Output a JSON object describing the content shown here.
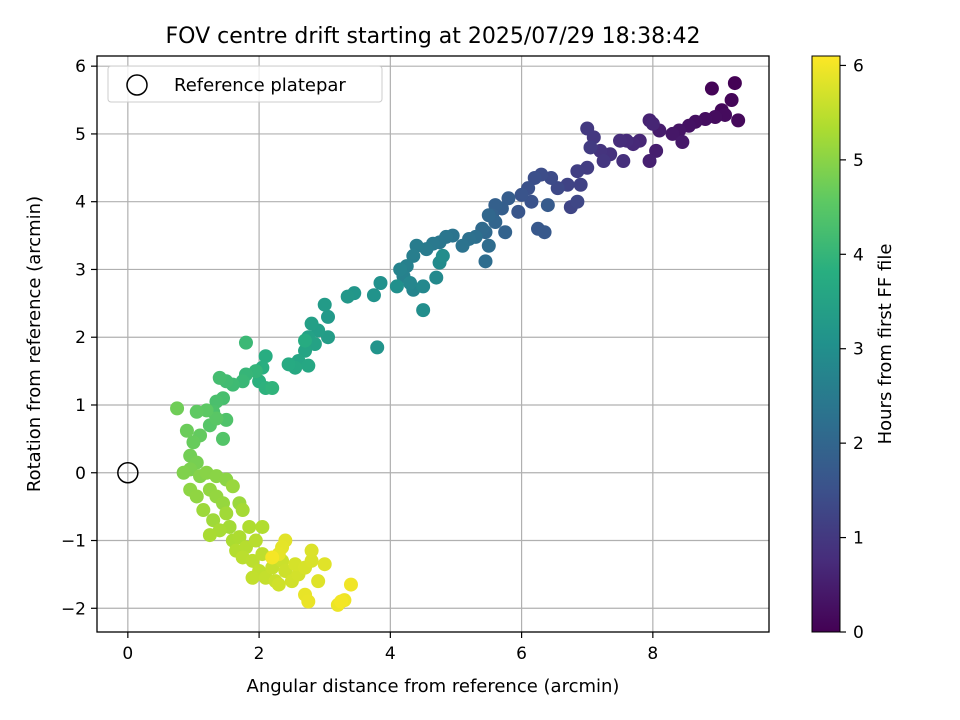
{
  "chart_data": {
    "type": "scatter",
    "title": "FOV centre drift starting at 2025/07/29 18:38:42",
    "xlabel": "Angular distance from reference (arcmin)",
    "ylabel": "Rotation from reference (arcmin)",
    "xlim": [
      -0.47,
      9.77
    ],
    "ylim": [
      -2.35,
      6.15
    ],
    "x_ticks": [
      "0",
      "2",
      "4",
      "6",
      "8"
    ],
    "y_ticks": [
      "−2",
      "−1",
      "0",
      "1",
      "2",
      "3",
      "4",
      "5",
      "6"
    ],
    "grid": true,
    "legend": {
      "placement": "top-left",
      "label": "Reference platepar"
    },
    "reference": {
      "x": 0,
      "y": 0
    },
    "colorbar": {
      "label": "Hours from first FF file",
      "range": [
        0,
        6.1
      ],
      "ticks": [
        "0",
        "1",
        "2",
        "3",
        "4",
        "5",
        "6"
      ],
      "colormap": "viridis"
    },
    "points": [
      [
        9.25,
        5.75,
        0.02
      ],
      [
        8.9,
        5.67,
        0.05
      ],
      [
        9.2,
        5.5,
        0.08
      ],
      [
        9.05,
        5.35,
        0.11
      ],
      [
        9.3,
        5.2,
        0.14
      ],
      [
        9.1,
        5.28,
        0.17
      ],
      [
        8.95,
        5.25,
        0.2
      ],
      [
        8.8,
        5.22,
        0.23
      ],
      [
        8.65,
        5.18,
        0.26
      ],
      [
        8.55,
        5.12,
        0.3
      ],
      [
        8.4,
        5.05,
        0.34
      ],
      [
        8.3,
        5.0,
        0.38
      ],
      [
        8.45,
        4.88,
        0.42
      ],
      [
        8.1,
        5.05,
        0.46
      ],
      [
        8.05,
        4.75,
        0.5
      ],
      [
        7.95,
        4.6,
        0.54
      ],
      [
        7.95,
        5.2,
        0.58
      ],
      [
        8.0,
        5.15,
        0.62
      ],
      [
        7.8,
        4.9,
        0.66
      ],
      [
        7.7,
        4.85,
        0.7
      ],
      [
        7.6,
        4.9,
        0.74
      ],
      [
        7.5,
        4.9,
        0.78
      ],
      [
        7.55,
        4.6,
        0.82
      ],
      [
        7.35,
        4.7,
        0.86
      ],
      [
        7.2,
        4.75,
        0.9
      ],
      [
        7.25,
        4.6,
        0.94
      ],
      [
        7.1,
        4.95,
        0.98
      ],
      [
        7.0,
        5.08,
        1.02
      ],
      [
        7.05,
        4.8,
        1.06
      ],
      [
        7.0,
        4.5,
        1.1
      ],
      [
        6.85,
        4.45,
        1.14
      ],
      [
        6.9,
        4.25,
        1.18
      ],
      [
        6.7,
        4.25,
        1.22
      ],
      [
        6.75,
        3.92,
        1.26
      ],
      [
        6.85,
        4.0,
        1.3
      ],
      [
        6.55,
        4.2,
        1.34
      ],
      [
        6.45,
        4.35,
        1.38
      ],
      [
        6.3,
        4.4,
        1.42
      ],
      [
        6.2,
        4.35,
        1.46
      ],
      [
        6.1,
        4.2,
        1.5
      ],
      [
        6.15,
        4.0,
        1.54
      ],
      [
        6.0,
        4.1,
        1.58
      ],
      [
        5.95,
        3.85,
        1.62
      ],
      [
        6.25,
        3.6,
        1.66
      ],
      [
        6.35,
        3.55,
        1.7
      ],
      [
        6.4,
        3.95,
        1.74
      ],
      [
        5.8,
        4.05,
        1.78
      ],
      [
        5.7,
        3.9,
        1.82
      ],
      [
        5.6,
        3.95,
        1.86
      ],
      [
        5.55,
        3.8,
        1.9
      ],
      [
        5.75,
        3.55,
        1.94
      ],
      [
        5.6,
        3.7,
        1.98
      ],
      [
        5.5,
        3.8,
        2.02
      ],
      [
        5.45,
        3.55,
        2.06
      ],
      [
        5.4,
        3.6,
        2.1
      ],
      [
        5.5,
        3.35,
        2.14
      ],
      [
        5.45,
        3.12,
        2.18
      ],
      [
        5.3,
        3.48,
        2.22
      ],
      [
        5.2,
        3.45,
        2.26
      ],
      [
        5.1,
        3.35,
        2.3
      ],
      [
        4.95,
        3.5,
        2.34
      ],
      [
        4.85,
        3.48,
        2.38
      ],
      [
        4.75,
        3.4,
        2.42
      ],
      [
        4.65,
        3.38,
        2.46
      ],
      [
        4.55,
        3.3,
        2.5
      ],
      [
        4.4,
        3.35,
        2.54
      ],
      [
        4.35,
        3.2,
        2.58
      ],
      [
        4.25,
        3.05,
        2.62
      ],
      [
        4.2,
        2.9,
        2.66
      ],
      [
        4.15,
        3.0,
        2.7
      ],
      [
        4.35,
        2.7,
        2.74
      ],
      [
        4.3,
        2.8,
        2.78
      ],
      [
        4.5,
        2.75,
        2.82
      ],
      [
        4.7,
        2.88,
        2.86
      ],
      [
        4.75,
        3.1,
        2.9
      ],
      [
        4.8,
        3.2,
        2.94
      ],
      [
        4.5,
        2.4,
        2.98
      ],
      [
        4.1,
        2.75,
        3.02
      ],
      [
        3.85,
        2.8,
        3.06
      ],
      [
        3.75,
        2.62,
        3.1
      ],
      [
        3.8,
        1.85,
        3.14
      ],
      [
        3.45,
        2.65,
        3.18
      ],
      [
        3.35,
        2.6,
        3.22
      ],
      [
        3.05,
        2.3,
        3.26
      ],
      [
        3.0,
        2.48,
        3.3
      ],
      [
        3.05,
        2.0,
        3.34
      ],
      [
        2.9,
        2.1,
        3.38
      ],
      [
        2.8,
        2.2,
        3.42
      ],
      [
        2.75,
        2.0,
        3.46
      ],
      [
        2.85,
        1.9,
        3.5
      ],
      [
        2.7,
        1.8,
        3.54
      ],
      [
        2.6,
        1.65,
        3.58
      ],
      [
        2.75,
        1.58,
        3.62
      ],
      [
        2.55,
        1.55,
        3.66
      ],
      [
        2.45,
        1.6,
        3.7
      ],
      [
        2.7,
        1.95,
        3.74
      ],
      [
        2.1,
        1.72,
        3.78
      ],
      [
        2.05,
        1.55,
        3.82
      ],
      [
        2.0,
        1.35,
        3.86
      ],
      [
        2.1,
        1.25,
        3.9
      ],
      [
        2.2,
        1.25,
        3.94
      ],
      [
        1.95,
        1.5,
        3.98
      ],
      [
        1.8,
        1.45,
        4.02
      ],
      [
        1.75,
        1.35,
        4.06
      ],
      [
        1.8,
        1.92,
        4.1
      ],
      [
        1.6,
        1.3,
        4.14
      ],
      [
        1.5,
        1.35,
        4.18
      ],
      [
        1.4,
        1.4,
        4.22
      ],
      [
        1.45,
        1.1,
        4.26
      ],
      [
        1.35,
        1.05,
        4.3
      ],
      [
        1.3,
        0.9,
        4.34
      ],
      [
        1.5,
        0.78,
        4.38
      ],
      [
        1.45,
        0.5,
        4.42
      ],
      [
        1.25,
        0.7,
        4.46
      ],
      [
        1.35,
        0.8,
        4.5
      ],
      [
        1.2,
        0.92,
        4.54
      ],
      [
        1.05,
        0.9,
        4.58
      ],
      [
        1.1,
        0.55,
        4.62
      ],
      [
        1.0,
        0.45,
        4.66
      ],
      [
        0.9,
        0.62,
        4.7
      ],
      [
        0.75,
        0.95,
        4.74
      ],
      [
        0.95,
        0.25,
        4.78
      ],
      [
        1.05,
        0.15,
        4.82
      ],
      [
        0.95,
        0.05,
        4.86
      ],
      [
        0.85,
        0.0,
        4.9
      ],
      [
        1.1,
        -0.05,
        4.94
      ],
      [
        1.2,
        0.0,
        4.98
      ],
      [
        1.35,
        -0.05,
        5.0
      ],
      [
        1.5,
        -0.1,
        5.02
      ],
      [
        0.95,
        -0.25,
        5.04
      ],
      [
        1.05,
        -0.35,
        5.06
      ],
      [
        1.25,
        -0.25,
        5.08
      ],
      [
        1.35,
        -0.35,
        5.1
      ],
      [
        1.45,
        -0.45,
        5.12
      ],
      [
        1.6,
        -0.2,
        5.14
      ],
      [
        1.7,
        -0.45,
        5.16
      ],
      [
        1.15,
        -0.55,
        5.18
      ],
      [
        1.3,
        -0.7,
        5.2
      ],
      [
        1.5,
        -0.6,
        5.22
      ],
      [
        1.55,
        -0.8,
        5.24
      ],
      [
        1.75,
        -0.55,
        5.26
      ],
      [
        1.4,
        -0.85,
        5.28
      ],
      [
        1.25,
        -0.92,
        5.3
      ],
      [
        1.6,
        -1.0,
        5.32
      ],
      [
        1.7,
        -0.95,
        5.34
      ],
      [
        1.85,
        -0.8,
        5.36
      ],
      [
        2.05,
        -0.8,
        5.38
      ],
      [
        1.65,
        -1.15,
        5.4
      ],
      [
        1.8,
        -1.1,
        5.42
      ],
      [
        1.95,
        -1.0,
        5.44
      ],
      [
        1.75,
        -1.25,
        5.46
      ],
      [
        1.9,
        -1.3,
        5.48
      ],
      [
        2.05,
        -1.2,
        5.5
      ],
      [
        2.0,
        -1.45,
        5.52
      ],
      [
        1.9,
        -1.55,
        5.54
      ],
      [
        2.1,
        -1.55,
        5.56
      ],
      [
        2.2,
        -1.4,
        5.58
      ],
      [
        2.25,
        -1.6,
        5.6
      ],
      [
        2.35,
        -1.3,
        5.62
      ],
      [
        2.4,
        -1.45,
        5.64
      ],
      [
        2.3,
        -1.65,
        5.66
      ],
      [
        2.5,
        -1.6,
        5.68
      ],
      [
        2.6,
        -1.5,
        5.7
      ],
      [
        2.55,
        -1.35,
        5.72
      ],
      [
        2.7,
        -1.4,
        5.74
      ],
      [
        2.8,
        -1.3,
        5.76
      ],
      [
        2.8,
        -1.15,
        5.78
      ],
      [
        2.9,
        -1.6,
        5.8
      ],
      [
        3.0,
        -1.35,
        5.82
      ],
      [
        2.4,
        -1.0,
        5.84
      ],
      [
        2.35,
        -1.1,
        5.86
      ],
      [
        2.3,
        -1.2,
        5.88
      ],
      [
        2.7,
        -1.8,
        5.9
      ],
      [
        2.75,
        -1.9,
        5.92
      ],
      [
        3.2,
        -1.95,
        5.94
      ],
      [
        3.3,
        -1.88,
        5.96
      ],
      [
        3.4,
        -1.65,
        5.98
      ],
      [
        3.25,
        -1.9,
        6.0
      ],
      [
        2.2,
        -1.25,
        6.02
      ]
    ]
  }
}
